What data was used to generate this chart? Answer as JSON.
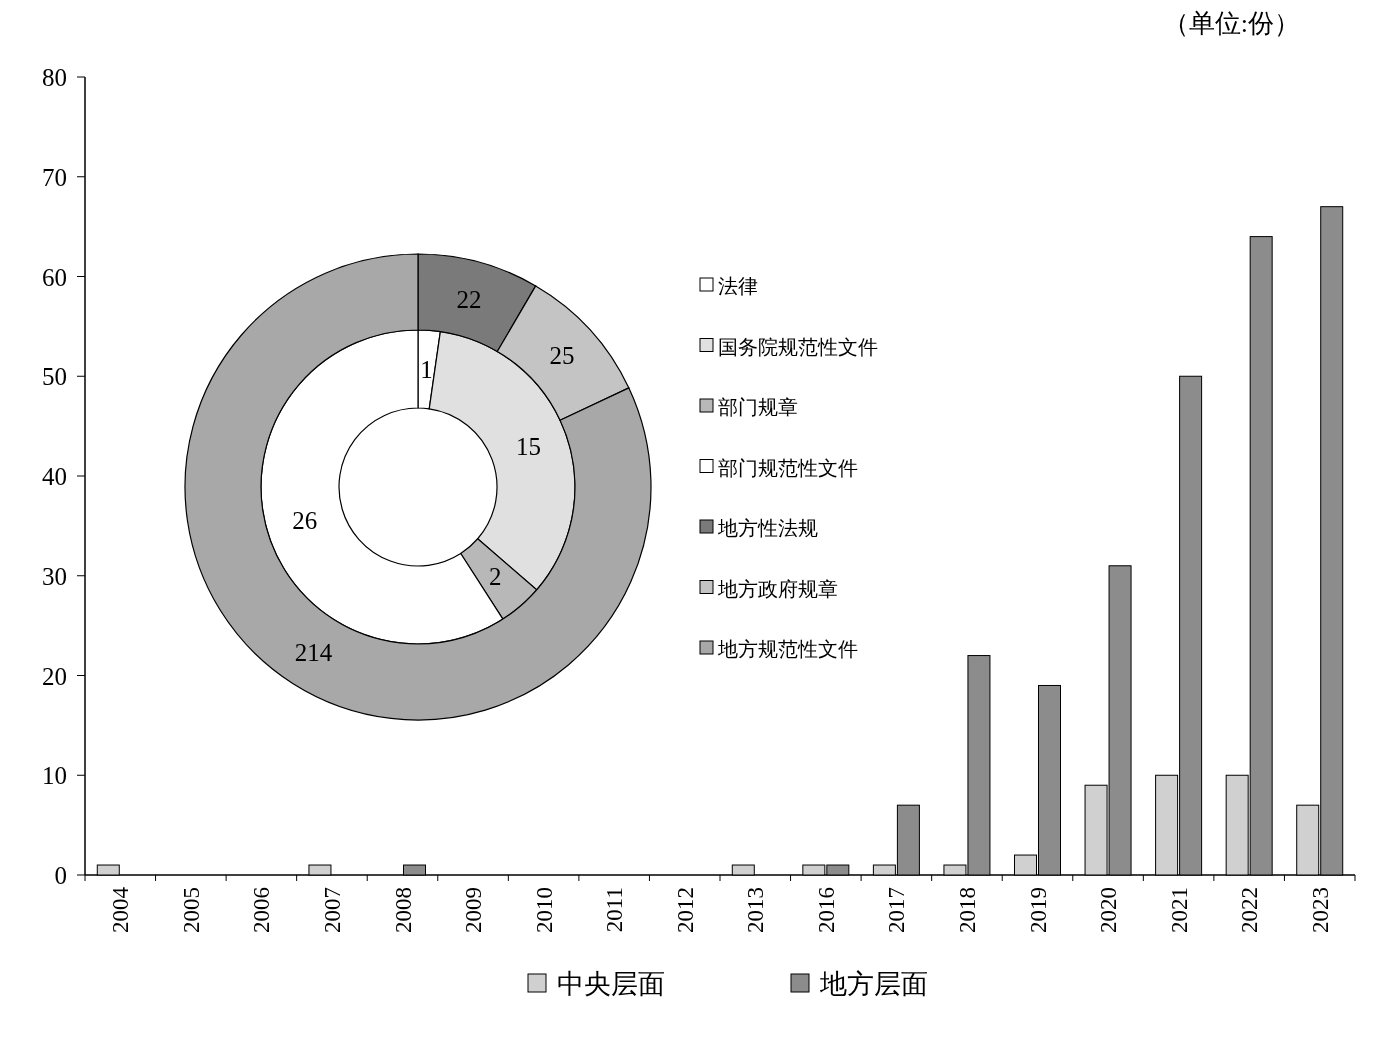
{
  "chart_data": [
    {
      "type": "bar",
      "annotations": [
        "（单位:份）"
      ],
      "categories": [
        "2004",
        "2005",
        "2006",
        "2007",
        "2008",
        "2009",
        "2010",
        "2011",
        "2012",
        "2013",
        "2016",
        "2017",
        "2018",
        "2019",
        "2020",
        "2021",
        "2022",
        "2023"
      ],
      "series": [
        {
          "name": "中央层面",
          "color": "#d0d0d0",
          "values": [
            1,
            0,
            0,
            1,
            0,
            0,
            0,
            0,
            0,
            1,
            1,
            1,
            1,
            2,
            9,
            10,
            10,
            7
          ]
        },
        {
          "name": "地方层面",
          "color": "#8c8c8c",
          "values": [
            0,
            0,
            0,
            0,
            1,
            0,
            0,
            0,
            0,
            0,
            1,
            7,
            22,
            19,
            31,
            50,
            64,
            67
          ]
        }
      ],
      "ylim": [
        0,
        80
      ],
      "yticks": [
        0,
        10,
        20,
        30,
        40,
        50,
        60,
        70,
        80
      ],
      "grid": false,
      "legend": "bottom"
    },
    {
      "type": "donut",
      "categories": [
        "法律",
        "国务院规范性文件",
        "部门规章",
        "部门规范性文件",
        "地方性法规",
        "地方政府规章",
        "地方规范性文件"
      ],
      "colors": [
        "#ffffff",
        "#e0e0e0",
        "#b8b8b8",
        "#ffffff",
        "#7a7a7a",
        "#c4c4c4",
        "#a8a8a8"
      ],
      "series": [
        {
          "values": [
            1,
            15,
            2,
            26,
            null,
            null,
            null
          ]
        },
        {
          "values": [
            null,
            null,
            null,
            null,
            22,
            25,
            214
          ]
        }
      ],
      "data_labels": true,
      "legend": "right"
    }
  ]
}
